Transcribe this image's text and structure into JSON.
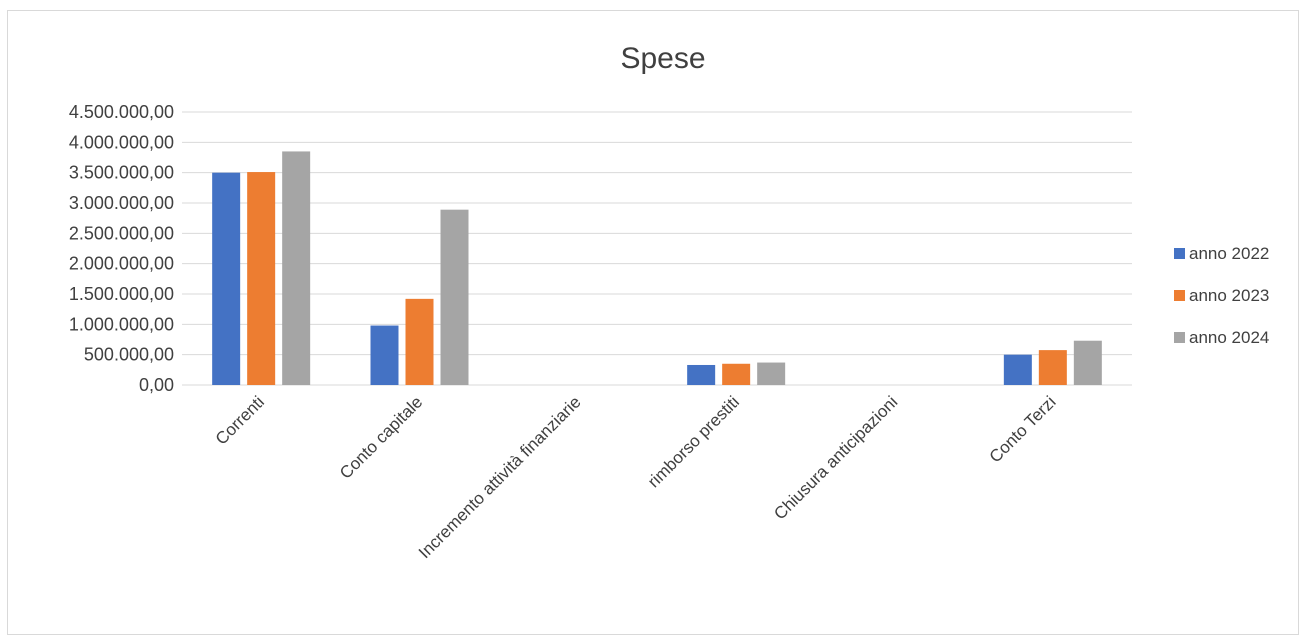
{
  "chart_data": {
    "type": "bar",
    "title": "Spese",
    "categories": [
      "Correnti",
      "Conto capitale",
      "Incremento attività finanziarie",
      "rimborso prestiti",
      "Chiusura anticipazioni",
      "Conto Terzi"
    ],
    "series": [
      {
        "name": "anno 2022",
        "color": "#4472C4",
        "values": [
          3500000,
          980000,
          0,
          330000,
          0,
          500000
        ]
      },
      {
        "name": "anno 2023",
        "color": "#ED7D31",
        "values": [
          3510000,
          1420000,
          0,
          350000,
          0,
          575000
        ]
      },
      {
        "name": "anno 2024",
        "color": "#A5A5A5",
        "values": [
          3850000,
          2890000,
          0,
          370000,
          0,
          730000
        ]
      }
    ],
    "ylim": [
      0,
      4500000
    ],
    "yticks": [
      0,
      500000,
      1000000,
      1500000,
      2000000,
      2500000,
      3000000,
      3500000,
      4000000,
      4500000
    ],
    "ytick_labels": [
      "0,00",
      "500.000,00",
      "1.000.000,00",
      "1.500.000,00",
      "2.000.000,00",
      "2.500.000,00",
      "3.000.000,00",
      "3.500.000,00",
      "4.000.000,00",
      "4.500.000,00"
    ],
    "grid": true,
    "legend": "right"
  }
}
